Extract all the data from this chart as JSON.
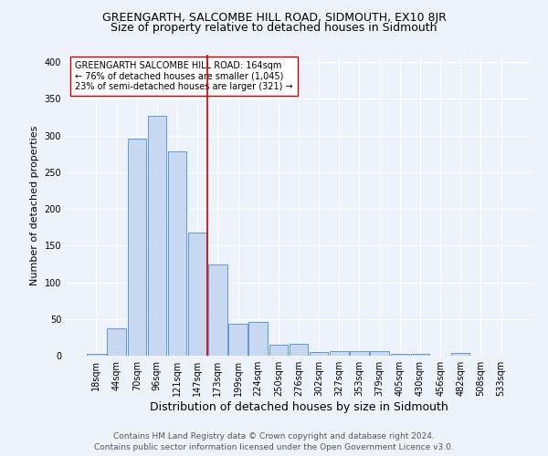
{
  "title": "GREENGARTH, SALCOMBE HILL ROAD, SIDMOUTH, EX10 8JR",
  "subtitle": "Size of property relative to detached houses in Sidmouth",
  "xlabel": "Distribution of detached houses by size in Sidmouth",
  "ylabel": "Number of detached properties",
  "bin_labels": [
    "18sqm",
    "44sqm",
    "70sqm",
    "96sqm",
    "121sqm",
    "147sqm",
    "173sqm",
    "199sqm",
    "224sqm",
    "250sqm",
    "276sqm",
    "302sqm",
    "327sqm",
    "353sqm",
    "379sqm",
    "405sqm",
    "430sqm",
    "456sqm",
    "482sqm",
    "508sqm",
    "533sqm"
  ],
  "bar_heights": [
    3,
    37,
    296,
    327,
    278,
    168,
    124,
    44,
    46,
    15,
    16,
    5,
    6,
    6,
    6,
    3,
    2,
    0,
    4,
    0,
    0
  ],
  "bar_color": "#c8d8f0",
  "bar_edgecolor": "#5b9bd5",
  "marker_bin_index": 5,
  "marker_color": "#cc0000",
  "annotation_text": "GREENGARTH SALCOMBE HILL ROAD: 164sqm\n← 76% of detached houses are smaller (1,045)\n23% of semi-detached houses are larger (321) →",
  "annotation_box_color": "#ffffff",
  "annotation_box_edgecolor": "#cc0000",
  "ylim": [
    0,
    410
  ],
  "yticks": [
    0,
    50,
    100,
    150,
    200,
    250,
    300,
    350,
    400
  ],
  "footer_line1": "Contains HM Land Registry data © Crown copyright and database right 2024.",
  "footer_line2": "Contains public sector information licensed under the Open Government Licence v3.0.",
  "background_color": "#eef2fa",
  "plot_background_color": "#eef2fa",
  "grid_color": "#ffffff",
  "title_fontsize": 9,
  "subtitle_fontsize": 9,
  "xlabel_fontsize": 9,
  "ylabel_fontsize": 8,
  "tick_fontsize": 7,
  "annotation_fontsize": 7,
  "footer_fontsize": 6.5
}
